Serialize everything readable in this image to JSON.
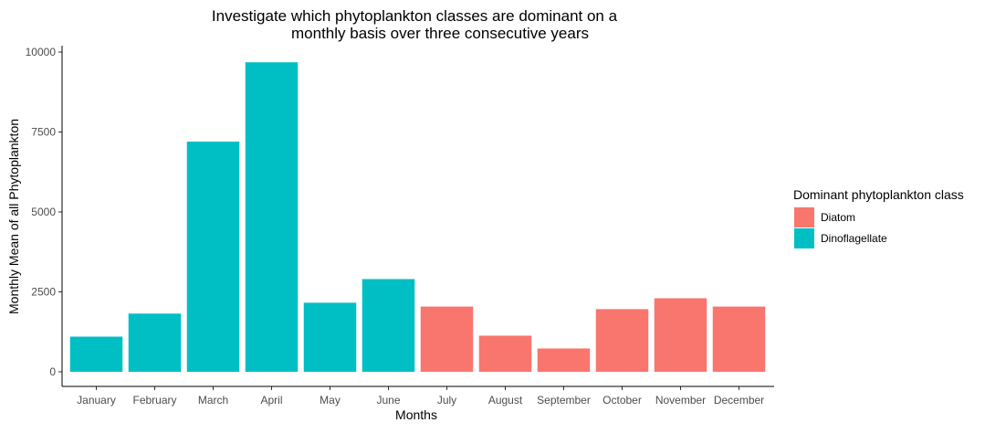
{
  "chart_data": {
    "type": "bar",
    "title_lines": [
      "Investigate which phytoplankton classes are dominant on a",
      "monthly basis over three consecutive years"
    ],
    "xlabel": "Months",
    "ylabel": "Monthly Mean of all Phytoplankton",
    "ylim": [
      0,
      10000
    ],
    "yticks": [
      0,
      2500,
      5000,
      7500,
      10000
    ],
    "categories": [
      "January",
      "February",
      "March",
      "April",
      "May",
      "June",
      "July",
      "August",
      "September",
      "October",
      "November",
      "December"
    ],
    "values": [
      1100,
      1820,
      7200,
      9680,
      2160,
      2900,
      2040,
      1130,
      730,
      1960,
      2300,
      2040
    ],
    "classes": [
      "Dinoflagellate",
      "Dinoflagellate",
      "Dinoflagellate",
      "Dinoflagellate",
      "Dinoflagellate",
      "Dinoflagellate",
      "Diatom",
      "Diatom",
      "Diatom",
      "Diatom",
      "Diatom",
      "Diatom"
    ],
    "legend": {
      "title": "Dominant phytoplankton class",
      "placement": "right",
      "entries": [
        {
          "name": "Diatom",
          "color": "#F8766D"
        },
        {
          "name": "Dinoflagellate",
          "color": "#00BFC4"
        }
      ]
    },
    "grid": false
  }
}
